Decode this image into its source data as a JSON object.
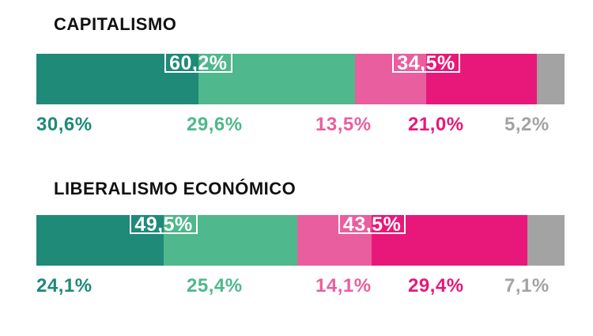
{
  "colors": {
    "muy_favorable": "#1f8a78",
    "favorable": "#4fb88c",
    "desfavorable": "#e95e9e",
    "muy_desfavorable": "#e8187a",
    "otros": "#a3a3a3"
  },
  "chart_data": [
    {
      "type": "bar",
      "stacked": true,
      "orientation": "horizontal",
      "title": "CAPITALISMO",
      "segments": [
        {
          "value": 30.6,
          "label": "30,6%",
          "color": "#1f8a78"
        },
        {
          "value": 29.6,
          "label": "29,6%",
          "color": "#4fb88c"
        },
        {
          "value": 13.5,
          "label": "13,5%",
          "color": "#e95e9e"
        },
        {
          "value": 21.0,
          "label": "21,0%",
          "color": "#e8187a"
        },
        {
          "value": 5.2,
          "label": "5,2%",
          "color": "#a3a3a3"
        }
      ],
      "totals": [
        {
          "value": 60.2,
          "label": "60,2%",
          "over_segments": [
            0,
            1
          ]
        },
        {
          "value": 34.5,
          "label": "34,5%",
          "over_segments": [
            2,
            3
          ]
        }
      ]
    },
    {
      "type": "bar",
      "stacked": true,
      "orientation": "horizontal",
      "title": "LIBERALISMO ECONÓMICO",
      "segments": [
        {
          "value": 24.1,
          "label": "24,1%",
          "color": "#1f8a78"
        },
        {
          "value": 25.4,
          "label": "25,4%",
          "color": "#4fb88c"
        },
        {
          "value": 14.1,
          "label": "14,1%",
          "color": "#e95e9e"
        },
        {
          "value": 29.4,
          "label": "29,4%",
          "color": "#e8187a"
        },
        {
          "value": 7.1,
          "label": "7,1%",
          "color": "#a3a3a3"
        }
      ],
      "totals": [
        {
          "value": 49.5,
          "label": "49,5%",
          "over_segments": [
            0,
            1
          ]
        },
        {
          "value": 43.5,
          "label": "43,5%",
          "over_segments": [
            2,
            3
          ]
        }
      ]
    }
  ]
}
